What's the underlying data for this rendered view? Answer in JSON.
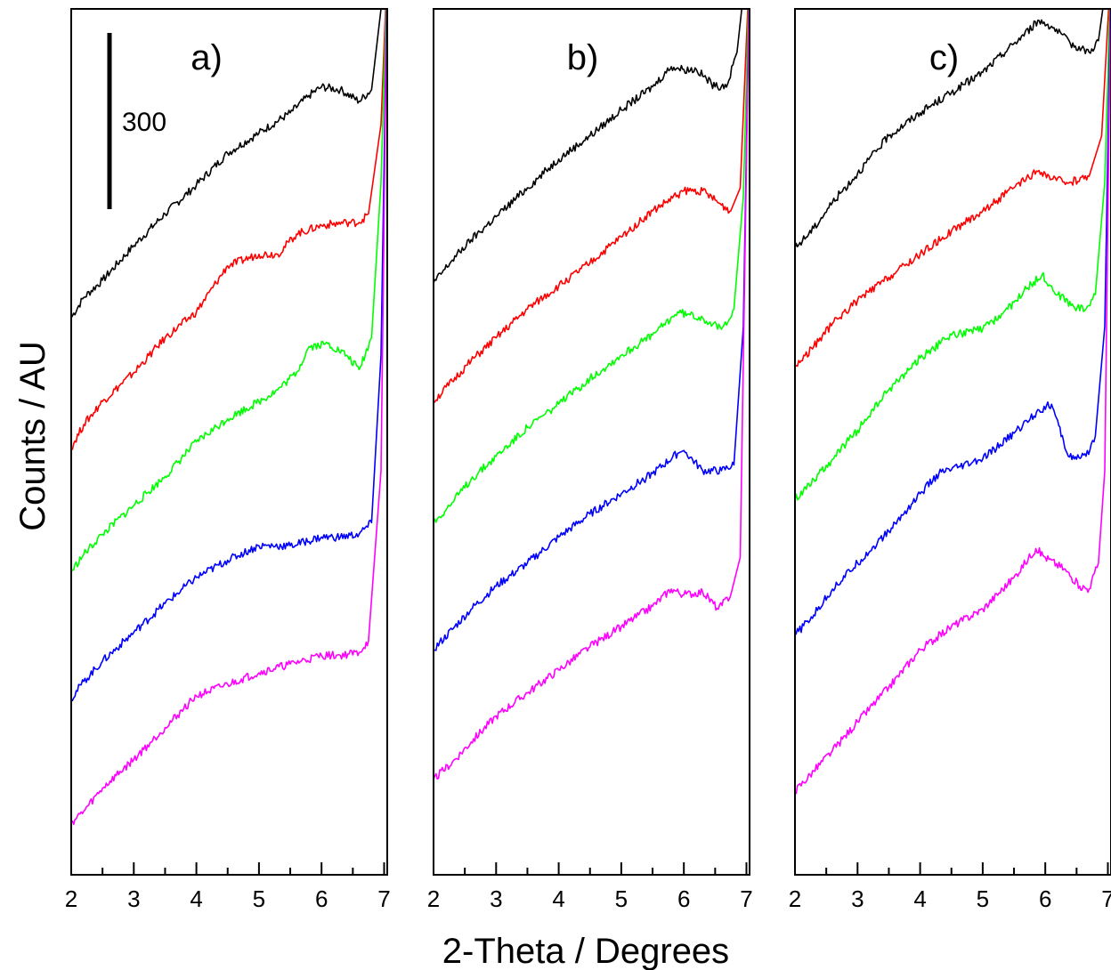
{
  "chart_data": {
    "type": "line",
    "xlabel": "2-Theta / Degrees",
    "ylabel": "Counts / AU",
    "xlim": [
      2,
      7.05
    ],
    "xticks": [
      2,
      3,
      4,
      5,
      6,
      7
    ],
    "ylim": [
      0,
      3000
    ],
    "scale_bar": {
      "label": "300",
      "value": 300
    },
    "series_colors": [
      "#000000",
      "#ff0000",
      "#00ff00",
      "#0000ff",
      "#ff00ff"
    ],
    "panels": [
      {
        "label": "a)",
        "series": [
          {
            "color": "#000000",
            "x": [
              2,
              2.2,
              2.5,
              3,
              3.5,
              4,
              4.5,
              5,
              5.5,
              5.8,
              6,
              6.3,
              6.6,
              6.8,
              6.95,
              7.0
            ],
            "y": [
              1930,
              2000,
              2060,
              2180,
              2290,
              2390,
              2500,
              2570,
              2640,
              2700,
              2730,
              2720,
              2680,
              2720,
              3000,
              3150
            ]
          },
          {
            "color": "#ff0000",
            "x": [
              2,
              2.2,
              2.5,
              3,
              3.5,
              4,
              4.5,
              5,
              5.3,
              5.6,
              6,
              6.4,
              6.6,
              6.75,
              6.95,
              7.05
            ],
            "y": [
              1480,
              1560,
              1640,
              1740,
              1860,
              1950,
              2110,
              2150,
              2150,
              2220,
              2250,
              2260,
              2260,
              2290,
              2600,
              3150
            ]
          },
          {
            "color": "#00ff00",
            "x": [
              2,
              2.2,
              2.5,
              3,
              3.5,
              4,
              4.5,
              5,
              5.3,
              5.6,
              5.8,
              6.1,
              6.4,
              6.6,
              6.8,
              6.95,
              7.05
            ],
            "y": [
              1050,
              1110,
              1180,
              1280,
              1380,
              1500,
              1580,
              1640,
              1680,
              1740,
              1830,
              1840,
              1800,
              1750,
              1860,
              2400,
              3150
            ]
          },
          {
            "color": "#0000ff",
            "x": [
              2,
              2.2,
              2.5,
              3,
              3.5,
              4,
              4.5,
              5,
              5.5,
              6,
              6.3,
              6.6,
              6.8,
              6.95,
              7.05
            ],
            "y": [
              610,
              670,
              740,
              840,
              940,
              1030,
              1090,
              1140,
              1140,
              1170,
              1170,
              1180,
              1220,
              1800,
              3150
            ]
          },
          {
            "color": "#ff00ff",
            "x": [
              2,
              2.2,
              2.5,
              3,
              3.5,
              4,
              4.5,
              5,
              5.5,
              6,
              6.3,
              6.6,
              6.75,
              6.95,
              7.05
            ],
            "y": [
              180,
              220,
              300,
              400,
              510,
              620,
              660,
              700,
              730,
              760,
              760,
              770,
              810,
              1400,
              3150
            ]
          }
        ]
      },
      {
        "label": "b)",
        "series": [
          {
            "color": "#000000",
            "x": [
              2,
              2.3,
              2.6,
              3,
              3.5,
              4,
              4.5,
              5,
              5.5,
              5.8,
              6,
              6.2,
              6.5,
              6.7,
              6.85,
              6.95,
              7.05
            ],
            "y": [
              2050,
              2130,
              2200,
              2280,
              2380,
              2480,
              2560,
              2650,
              2730,
              2800,
              2790,
              2790,
              2730,
              2740,
              2850,
              3050,
              3150
            ]
          },
          {
            "color": "#ff0000",
            "x": [
              2,
              2.3,
              2.6,
              3,
              3.5,
              4,
              4.5,
              5,
              5.5,
              6,
              6.3,
              6.6,
              6.75,
              6.9,
              7.05
            ],
            "y": [
              1640,
              1710,
              1780,
              1860,
              1960,
              2040,
              2120,
              2210,
              2300,
              2370,
              2370,
              2320,
              2300,
              2380,
              3150
            ]
          },
          {
            "color": "#00ff00",
            "x": [
              2,
              2.3,
              2.6,
              3,
              3.5,
              4,
              4.5,
              5,
              5.5,
              5.9,
              6.1,
              6.3,
              6.6,
              6.8,
              6.95,
              7.05
            ],
            "y": [
              1220,
              1290,
              1370,
              1450,
              1550,
              1630,
              1720,
              1800,
              1870,
              1950,
              1940,
              1930,
              1890,
              1960,
              2350,
              3150
            ]
          },
          {
            "color": "#0000ff",
            "x": [
              2,
              2.3,
              2.6,
              3,
              3.5,
              4,
              4.5,
              5,
              5.5,
              5.9,
              6.0,
              6.3,
              6.6,
              6.8,
              6.95,
              7.05
            ],
            "y": [
              780,
              850,
              920,
              1000,
              1080,
              1170,
              1250,
              1320,
              1390,
              1460,
              1470,
              1400,
              1400,
              1420,
              1900,
              3150
            ]
          },
          {
            "color": "#ff00ff",
            "x": [
              2,
              2.3,
              2.6,
              3,
              3.5,
              4,
              4.5,
              5,
              5.5,
              5.8,
              6,
              6.3,
              6.55,
              6.75,
              6.9,
              7.05
            ],
            "y": [
              330,
              390,
              460,
              550,
              630,
              710,
              790,
              860,
              930,
              990,
              970,
              980,
              920,
              970,
              1100,
              3150
            ]
          }
        ]
      },
      {
        "label": "c)",
        "series": [
          {
            "color": "#000000",
            "x": [
              2,
              2.3,
              2.6,
              3,
              3.5,
              4,
              4.5,
              5,
              5.5,
              5.9,
              6.1,
              6.4,
              6.7,
              6.85,
              6.95,
              7.05
            ],
            "y": [
              2170,
              2240,
              2330,
              2430,
              2560,
              2640,
              2710,
              2780,
              2880,
              2960,
              2940,
              2880,
              2850,
              2890,
              3050,
              3150
            ]
          },
          {
            "color": "#ff0000",
            "x": [
              2,
              2.3,
              2.6,
              3,
              3.5,
              4,
              4.5,
              5,
              5.5,
              5.9,
              6.1,
              6.4,
              6.7,
              6.9,
              7.05
            ],
            "y": [
              1760,
              1830,
              1910,
              1990,
              2070,
              2150,
              2230,
              2300,
              2380,
              2440,
              2410,
              2400,
              2420,
              2560,
              3150
            ]
          },
          {
            "color": "#00ff00",
            "x": [
              2,
              2.3,
              2.6,
              3,
              3.5,
              4,
              4.5,
              5,
              5.4,
              5.7,
              5.95,
              6.2,
              6.45,
              6.65,
              6.8,
              6.95,
              7.05
            ],
            "y": [
              1300,
              1370,
              1440,
              1540,
              1680,
              1790,
              1870,
              1890,
              1960,
              2030,
              2080,
              2010,
              1970,
              1960,
              2010,
              2400,
              3150
            ]
          },
          {
            "color": "#0000ff",
            "x": [
              2,
              2.3,
              2.6,
              3,
              3.5,
              4,
              4.3,
              4.6,
              5,
              5.5,
              5.9,
              6.1,
              6.35,
              6.5,
              6.65,
              6.8,
              6.95,
              7.05
            ],
            "y": [
              830,
              900,
              990,
              1080,
              1190,
              1320,
              1390,
              1410,
              1440,
              1530,
              1610,
              1630,
              1460,
              1440,
              1450,
              1520,
              1900,
              3150
            ]
          },
          {
            "color": "#ff00ff",
            "x": [
              2,
              2.3,
              2.6,
              3,
              3.5,
              4,
              4.5,
              5,
              5.5,
              5.85,
              6.0,
              6.3,
              6.55,
              6.7,
              6.85,
              6.95,
              7.05
            ],
            "y": [
              290,
              360,
              430,
              530,
              650,
              780,
              860,
              920,
              1030,
              1130,
              1100,
              1060,
              1000,
              990,
              1080,
              1400,
              3150
            ]
          }
        ]
      }
    ]
  }
}
